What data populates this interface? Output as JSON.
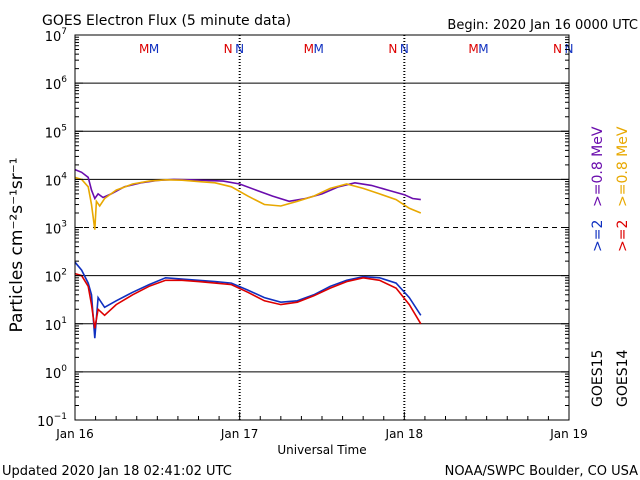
{
  "chart_data": {
    "type": "line",
    "title": "GOES Electron Flux (5 minute data)",
    "begin": "Begin: 2020 Jan 16 0000 UTC",
    "xlabel": "Universal Time",
    "ylabel": "Particles cm⁻²s⁻¹sr⁻¹",
    "x_unit": "days since 2020 Jan 16 0000 UTC",
    "xlim": [
      0,
      3
    ],
    "x_ticks": [
      {
        "x": 0,
        "label": "Jan 16"
      },
      {
        "x": 1,
        "label": "Jan 17"
      },
      {
        "x": 2,
        "label": "Jan 18"
      },
      {
        "x": 3,
        "label": "Jan 19"
      }
    ],
    "y_scale": "log",
    "ylim": [
      0.1,
      10000000
    ],
    "y_ticks": [
      {
        "base": "10",
        "exp": "7"
      },
      {
        "base": "10",
        "exp": "6"
      },
      {
        "base": "10",
        "exp": "5"
      },
      {
        "base": "10",
        "exp": "4"
      },
      {
        "base": "10",
        "exp": "3"
      },
      {
        "base": "10",
        "exp": "2"
      },
      {
        "base": "10",
        "exp": "1"
      },
      {
        "base": "10",
        "exp": "0"
      },
      {
        "base": "10",
        "exp": "−1"
      }
    ],
    "thresholds": [
      {
        "y": 1000,
        "style": "dashed"
      }
    ],
    "gridlines_solid": [
      1000000,
      100000,
      10000,
      100,
      10,
      1
    ],
    "markers": [
      {
        "x": 0.42,
        "label": "M",
        "color": "#dd0000"
      },
      {
        "x": 0.48,
        "label": "M",
        "color": "#1030c0"
      },
      {
        "x": 0.93,
        "label": "N",
        "color": "#dd0000"
      },
      {
        "x": 1.0,
        "label": "N",
        "color": "#1030c0"
      },
      {
        "x": 1.42,
        "label": "M",
        "color": "#dd0000"
      },
      {
        "x": 1.48,
        "label": "M",
        "color": "#1030c0"
      },
      {
        "x": 1.93,
        "label": "N",
        "color": "#dd0000"
      },
      {
        "x": 2.0,
        "label": "N",
        "color": "#1030c0"
      },
      {
        "x": 2.42,
        "label": "M",
        "color": "#dd0000"
      },
      {
        "x": 2.48,
        "label": "M",
        "color": "#1030c0"
      },
      {
        "x": 2.93,
        "label": "N",
        "color": "#dd0000"
      },
      {
        "x": 3.0,
        "label": "N",
        "color": "#1030c0"
      }
    ],
    "legend": [
      {
        "text": "GOES15",
        "color": "#000000"
      },
      {
        "text": "GOES14",
        "color": "#000000"
      },
      {
        "text": ">=2",
        "color": "#1030c0"
      },
      {
        "text": ">=2",
        "color": "#dd0000"
      },
      {
        "text": ">=0.8  MeV",
        "color": "#6a0dad"
      },
      {
        "text": ">=0.8  MeV",
        "color": "#e8a800"
      }
    ],
    "series": [
      {
        "name": "GOES15 >=0.8 MeV",
        "color": "#6a0dad",
        "x": [
          0,
          0.04,
          0.08,
          0.1,
          0.12,
          0.14,
          0.17,
          0.22,
          0.3,
          0.4,
          0.5,
          0.6,
          0.7,
          0.8,
          0.9,
          1.0,
          1.1,
          1.2,
          1.3,
          1.4,
          1.5,
          1.6,
          1.7,
          1.8,
          1.9,
          2.0,
          2.05,
          2.1
        ],
        "y": [
          16000,
          14000,
          11000,
          6000,
          4000,
          5000,
          4200,
          5000,
          7000,
          8500,
          9500,
          10000,
          9800,
          9500,
          9200,
          8000,
          6000,
          4500,
          3500,
          4000,
          5000,
          7000,
          8500,
          7500,
          6000,
          4800,
          4000,
          3800
        ]
      },
      {
        "name": "GOES14 >=0.8 MeV",
        "color": "#e8a800",
        "x": [
          0,
          0.04,
          0.08,
          0.1,
          0.12,
          0.13,
          0.15,
          0.18,
          0.25,
          0.35,
          0.45,
          0.55,
          0.65,
          0.75,
          0.85,
          0.95,
          1.05,
          1.15,
          1.25,
          1.35,
          1.45,
          1.55,
          1.65,
          1.75,
          1.85,
          1.95,
          2.03,
          2.1
        ],
        "y": [
          11000,
          10000,
          7000,
          3000,
          900,
          3500,
          2800,
          4000,
          6000,
          8000,
          9200,
          9800,
          9600,
          9000,
          8500,
          7000,
          4500,
          3000,
          2800,
          3500,
          4500,
          6500,
          8000,
          6500,
          5000,
          3800,
          2500,
          2000
        ]
      },
      {
        "name": "GOES15 >=2 MeV",
        "color": "#1030c0",
        "x": [
          0,
          0.04,
          0.08,
          0.1,
          0.12,
          0.14,
          0.18,
          0.25,
          0.35,
          0.45,
          0.55,
          0.65,
          0.75,
          0.85,
          0.95,
          1.05,
          1.15,
          1.25,
          1.35,
          1.45,
          1.55,
          1.65,
          1.75,
          1.85,
          1.95,
          2.03,
          2.1
        ],
        "y": [
          190,
          130,
          70,
          40,
          5,
          35,
          22,
          30,
          45,
          65,
          90,
          85,
          80,
          75,
          70,
          50,
          35,
          28,
          30,
          40,
          60,
          80,
          95,
          90,
          70,
          35,
          15
        ]
      },
      {
        "name": "GOES14 >=2 MeV",
        "color": "#dd0000",
        "x": [
          0,
          0.04,
          0.08,
          0.1,
          0.12,
          0.14,
          0.18,
          0.25,
          0.35,
          0.45,
          0.55,
          0.65,
          0.75,
          0.85,
          0.95,
          1.05,
          1.15,
          1.25,
          1.35,
          1.45,
          1.55,
          1.65,
          1.75,
          1.85,
          1.95,
          2.03,
          2.1
        ],
        "y": [
          110,
          100,
          60,
          25,
          8,
          20,
          15,
          25,
          40,
          60,
          80,
          80,
          75,
          70,
          65,
          45,
          30,
          25,
          28,
          38,
          55,
          75,
          90,
          80,
          55,
          25,
          10
        ]
      }
    ]
  },
  "footer": {
    "updated": "Updated 2020 Jan 18 02:41:02 UTC",
    "credit": "NOAA/SWPC Boulder, CO USA"
  }
}
